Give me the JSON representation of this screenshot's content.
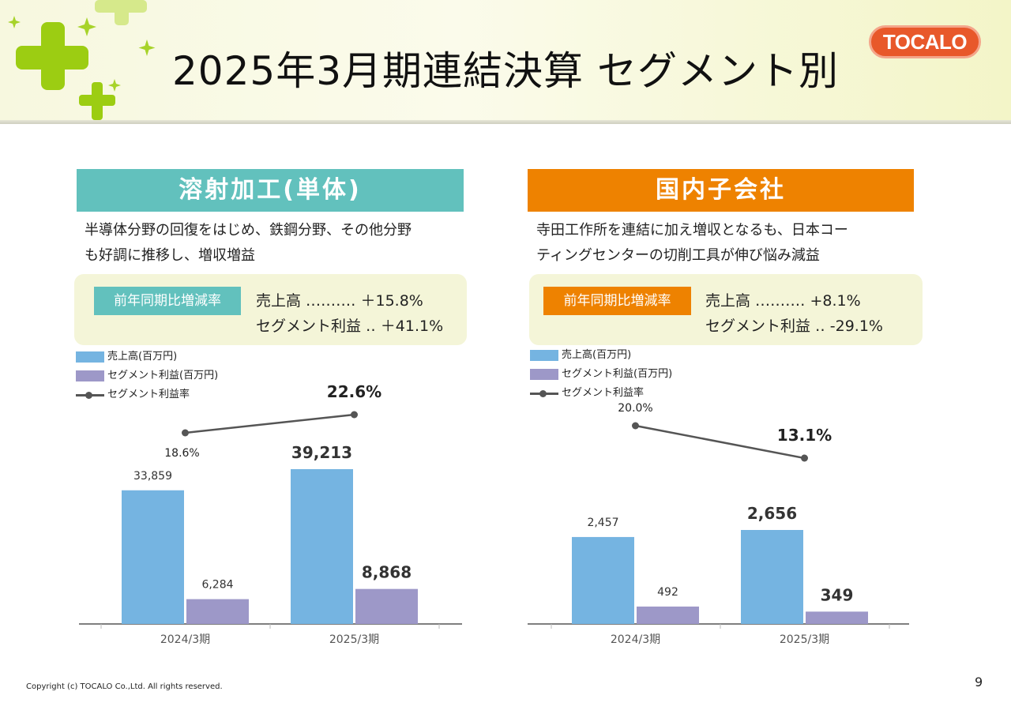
{
  "title": "2025年3月期連結決算 セグメント別",
  "logo_text": "TOCALO",
  "colors": {
    "teal": "#62c1bd",
    "orange": "#ee8200",
    "sales_bar": "#75b4e1",
    "profit_bar": "#9d98c8",
    "line": "#555555"
  },
  "panels": [
    {
      "heading": "溶射加工(単体)",
      "desc": [
        "半導体分野の回復をはじめ、鉄鋼分野、その他分野",
        "も好調に推移し、増収増益"
      ],
      "rate_tag": "前年同期比増減率",
      "rate_lines": [
        "売上高 ‥‥‥‥‥  ＋15.8%",
        "セグメント利益 ‥  ＋41.1%"
      ],
      "legend": [
        "売上高(百万円)",
        "セグメント利益(百万円)",
        "セグメント利益率"
      ]
    },
    {
      "heading": "国内子会社",
      "desc": [
        "寺田工作所を連結に加え増収となるも、日本コー",
        "ティングセンターの切削工具が伸び悩み減益"
      ],
      "rate_tag": "前年同期比増減率",
      "rate_lines": [
        "売上高 ‥‥‥‥‥   +8.1%",
        "セグメント利益 ‥  -29.1%"
      ],
      "legend": [
        "売上高(百万円)",
        "セグメント利益(百万円)",
        "セグメント利益率"
      ]
    }
  ],
  "chart_data": [
    {
      "type": "bar",
      "categories": [
        "2024/3期",
        "2025/3期"
      ],
      "series": [
        {
          "name": "売上高(百万円)",
          "values": [
            33859,
            39213
          ],
          "labels": [
            "33,859",
            "39,213"
          ]
        },
        {
          "name": "セグメント利益(百万円)",
          "values": [
            6284,
            8868
          ],
          "labels": [
            "6,284",
            "8,868"
          ]
        },
        {
          "name": "セグメント利益率",
          "type": "line",
          "values": [
            18.6,
            22.6
          ],
          "labels": [
            "18.6%",
            "22.6%"
          ]
        }
      ]
    },
    {
      "type": "bar",
      "categories": [
        "2024/3期",
        "2025/3期"
      ],
      "series": [
        {
          "name": "売上高(百万円)",
          "values": [
            2457,
            2656
          ],
          "labels": [
            "2,457",
            "2,656"
          ]
        },
        {
          "name": "セグメント利益(百万円)",
          "values": [
            492,
            349
          ],
          "labels": [
            "492",
            "349"
          ]
        },
        {
          "name": "セグメント利益率",
          "type": "line",
          "values": [
            20.0,
            13.1
          ],
          "labels": [
            "20.0%",
            "13.1%"
          ]
        }
      ]
    }
  ],
  "copyright": "Copyright (c) TOCALO Co.,Ltd. All rights reserved.",
  "page_number": "9"
}
